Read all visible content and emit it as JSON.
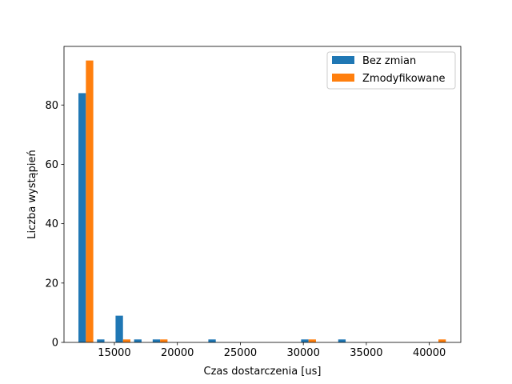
{
  "chart_data": {
    "type": "bar",
    "title": "",
    "xlabel": "Czas dostarczenia [us]",
    "ylabel": "Liczba wystąpień",
    "xlim": [
      11000,
      42500
    ],
    "ylim": [
      0,
      99.75
    ],
    "xticks": [
      15000,
      20000,
      25000,
      30000,
      35000,
      40000
    ],
    "yticks": [
      0,
      20,
      40,
      60,
      80
    ],
    "bin_edges": [
      12000,
      13473,
      14946,
      16419,
      17892,
      19365,
      20838,
      22311,
      23784,
      25257,
      26730,
      28203,
      29676,
      31149,
      32622,
      34095,
      35568,
      37041,
      38514,
      39987,
      41460
    ],
    "series": [
      {
        "name": "Bez zmian",
        "color": "#1f77b4",
        "values": [
          84,
          1,
          9,
          1,
          1,
          0,
          0,
          1,
          0,
          0,
          0,
          0,
          1,
          0,
          1,
          0,
          0,
          0,
          0,
          0
        ]
      },
      {
        "name": "Zmodyfikowane",
        "color": "#ff7f0e",
        "values": [
          95,
          0,
          1,
          0,
          1,
          0,
          0,
          0,
          0,
          0,
          0,
          0,
          1,
          0,
          0,
          0,
          0,
          0,
          0,
          1
        ]
      }
    ],
    "legend": "top-right",
    "grid": false
  }
}
